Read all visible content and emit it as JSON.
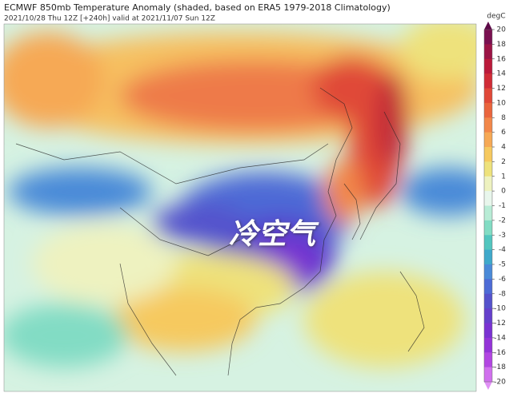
{
  "header": {
    "title": "ECMWF 850mb Temperature Anomaly (shaded, based on ERA5 1979-2018 Climatology)",
    "subtitle": "2021/10/28 Thu 12Z [+240h] valid at 2021/11/07 Sun 12Z"
  },
  "annotation": "冷空气",
  "colorbar": {
    "unit": "degC",
    "ticks": [
      20,
      18,
      16,
      14,
      12,
      10,
      8,
      6,
      4,
      2,
      1,
      0,
      -1,
      -2,
      -3,
      -4,
      -5,
      -6,
      -8,
      -10,
      -12,
      -14,
      -16,
      -18,
      -20
    ],
    "colors": [
      "#7a1050",
      "#9c1445",
      "#bb1a3a",
      "#d02c36",
      "#e04838",
      "#ea653d",
      "#f28749",
      "#f6a955",
      "#f6c95f",
      "#eee27c",
      "#eef2c0",
      "#e8f6ec",
      "#b8ecd6",
      "#82dcc4",
      "#52c6bf",
      "#3fa9cb",
      "#4a8ad8",
      "#4d6bd6",
      "#5552cc",
      "#6540cc",
      "#7a32d2",
      "#9434d8",
      "#b246e2",
      "#d070ee"
    ],
    "top_color": "#5e0a48",
    "bottom_color": "#e090f5"
  }
}
